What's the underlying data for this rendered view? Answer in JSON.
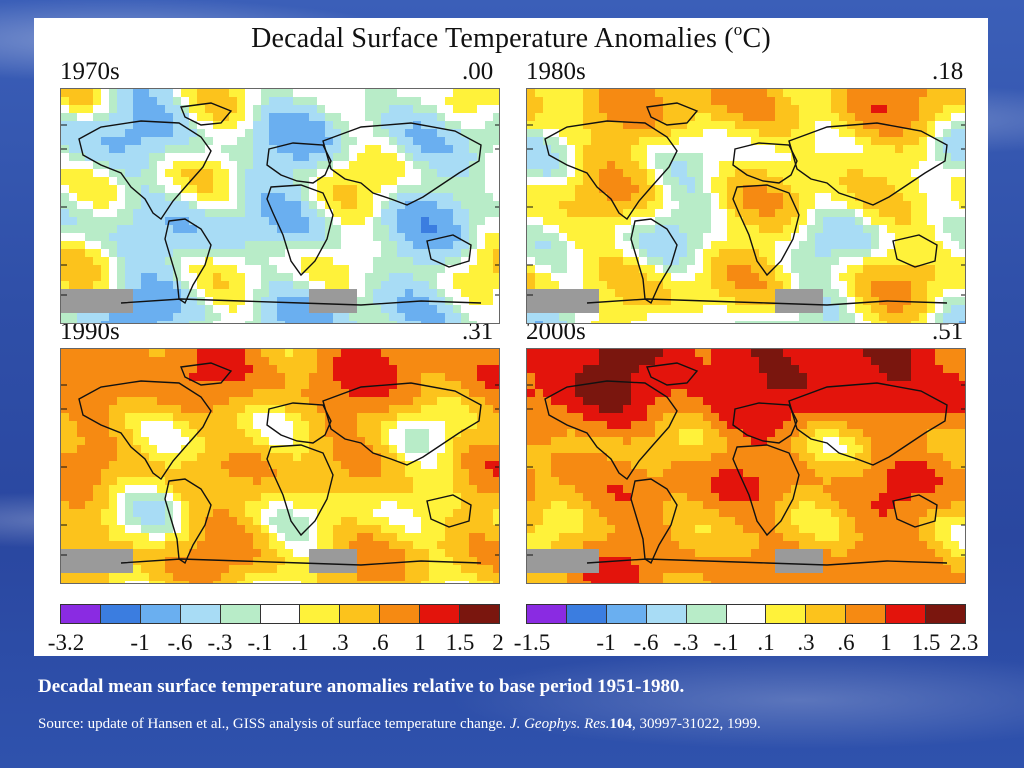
{
  "figure": {
    "title_prefix": "Decadal Surface Temperature Anomalies (",
    "title_unit_sup": "o",
    "title_suffix": "C)"
  },
  "maps": [
    {
      "decade": "1970s",
      "mean": ".00",
      "level": 0.0
    },
    {
      "decade": "1980s",
      "mean": ".18",
      "level": 0.18
    },
    {
      "decade": "1990s",
      "mean": ".31",
      "level": 0.31
    },
    {
      "decade": "2000s",
      "mean": ".51",
      "level": 0.51
    }
  ],
  "legend_left": {
    "colors": [
      "#8a2be2",
      "#3b7de0",
      "#6aaff0",
      "#a8dcf5",
      "#b8ecc8",
      "#ffffff",
      "#fff23a",
      "#fcc31c",
      "#f68a12",
      "#e3140c",
      "#7a160e"
    ],
    "ticks": [
      "-3.2",
      "-1",
      "-.6",
      "-.3",
      "-.1",
      ".1",
      ".3",
      ".6",
      "1",
      "1.5",
      "2"
    ]
  },
  "legend_right": {
    "colors": [
      "#8a2be2",
      "#3b7de0",
      "#6aaff0",
      "#a8dcf5",
      "#b8ecc8",
      "#ffffff",
      "#fff23a",
      "#fcc31c",
      "#f68a12",
      "#e3140c",
      "#7a160e"
    ],
    "ticks": [
      "-1.5",
      "-1",
      "-.6",
      "-.3",
      "-.1",
      ".1",
      ".3",
      ".6",
      "1",
      "1.5",
      "2.3"
    ]
  },
  "caption": "Decadal mean surface temperature anomalies relative to base period 1951-1980.",
  "source": {
    "prefix": "Source: update of Hansen et al., GISS analysis of surface temperature change. ",
    "journal": "J. Geophys. Res.",
    "volume": "104",
    "suffix": ", 30997-31022, 1999."
  }
}
